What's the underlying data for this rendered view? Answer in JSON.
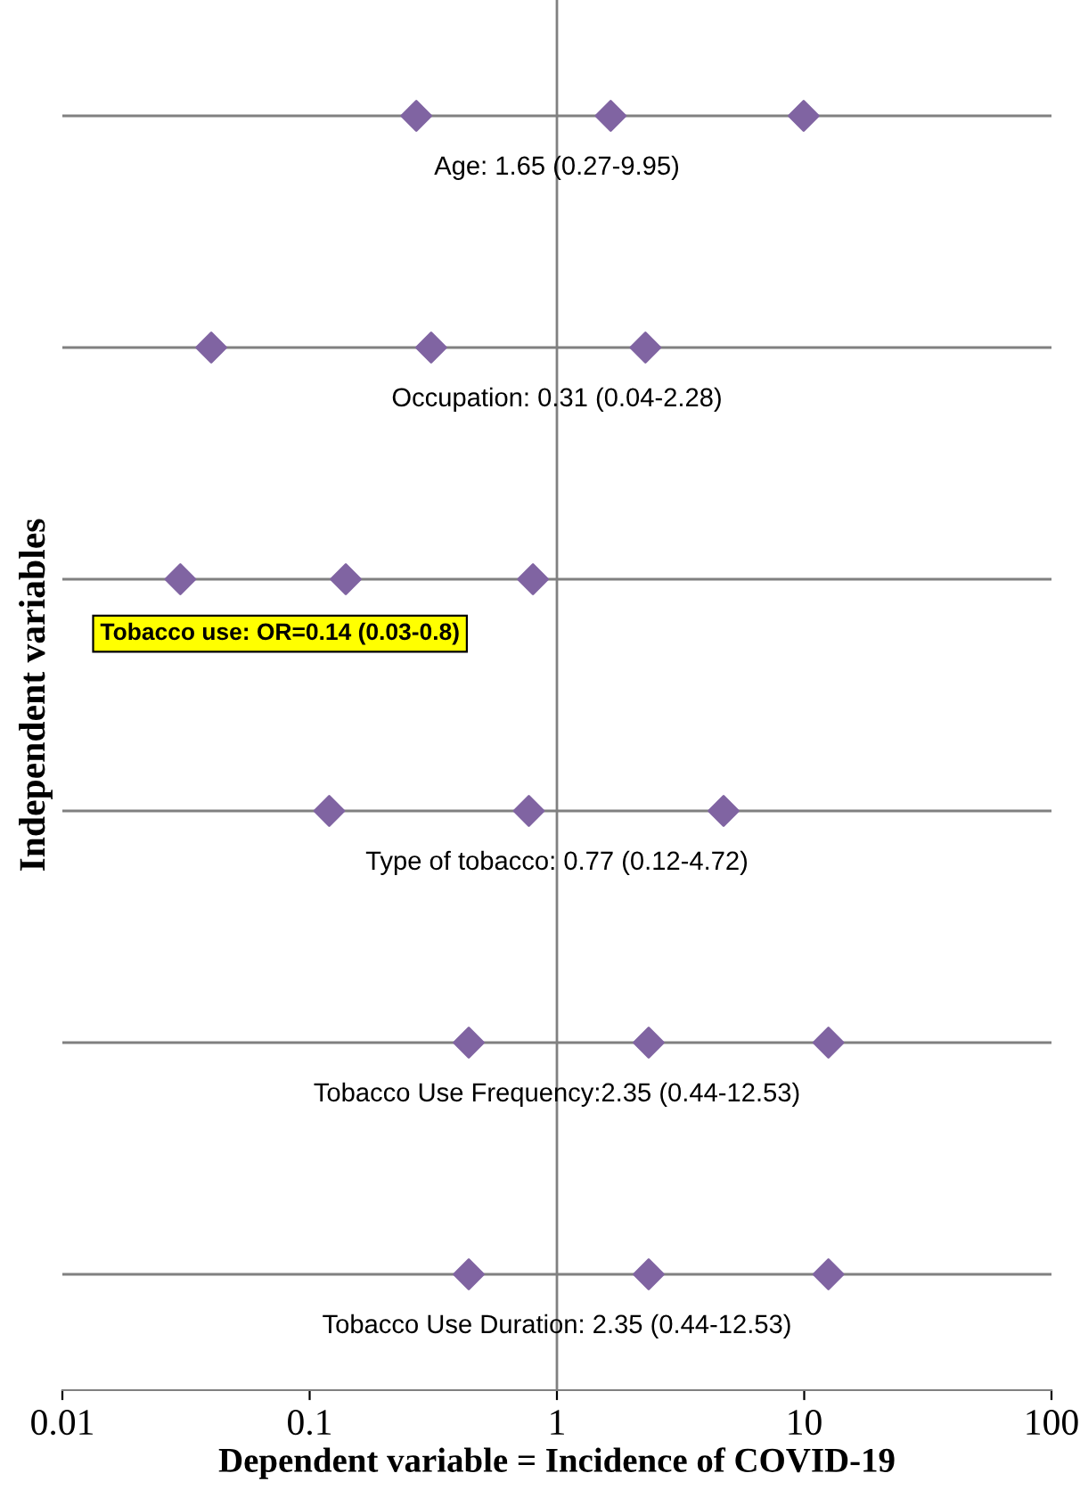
{
  "chart_data": {
    "type": "scatter",
    "orientation": "horizontal",
    "categories": [
      null,
      null,
      null,
      null,
      null,
      null
    ],
    "series": [
      {
        "color": "#8064a2",
        "values": [
          0.27,
          0.04,
          0.03,
          0.12,
          0.44,
          0.44
        ]
      },
      {
        "color": "#8064a2",
        "values": [
          1.65,
          0.31,
          0.14,
          0.77,
          2.35,
          2.35
        ]
      },
      {
        "color": "#8064a2",
        "values": [
          9.95,
          2.28,
          0.8,
          4.72,
          12.53,
          12.53
        ]
      }
    ],
    "marker": "diamond",
    "log": "x",
    "xlim": [
      0.01,
      100
    ],
    "xticks": [
      0.01,
      0.1,
      1,
      10,
      100
    ],
    "grid": "y",
    "tick_labels": "x",
    "ref_lines": [
      {
        "axis": "x",
        "value": 1,
        "color": "#808080"
      }
    ],
    "xlabel": "Dependent variable = Incidence of COVID-19",
    "ylabel": "Independent variables",
    "annotations": [
      "Age: 1.65 (0.27-9.95)",
      "Occupation: 0.31 (0.04-2.28)",
      "Tobacco use: OR=0.14 (0.03-0.8)",
      "Type of tobacco: 0.77 (0.12-4.72)",
      "Tobacco Use Frequency:2.35 (0.44-12.53)",
      "Tobacco Use Duration: 2.35 (0.44-12.53)"
    ]
  }
}
